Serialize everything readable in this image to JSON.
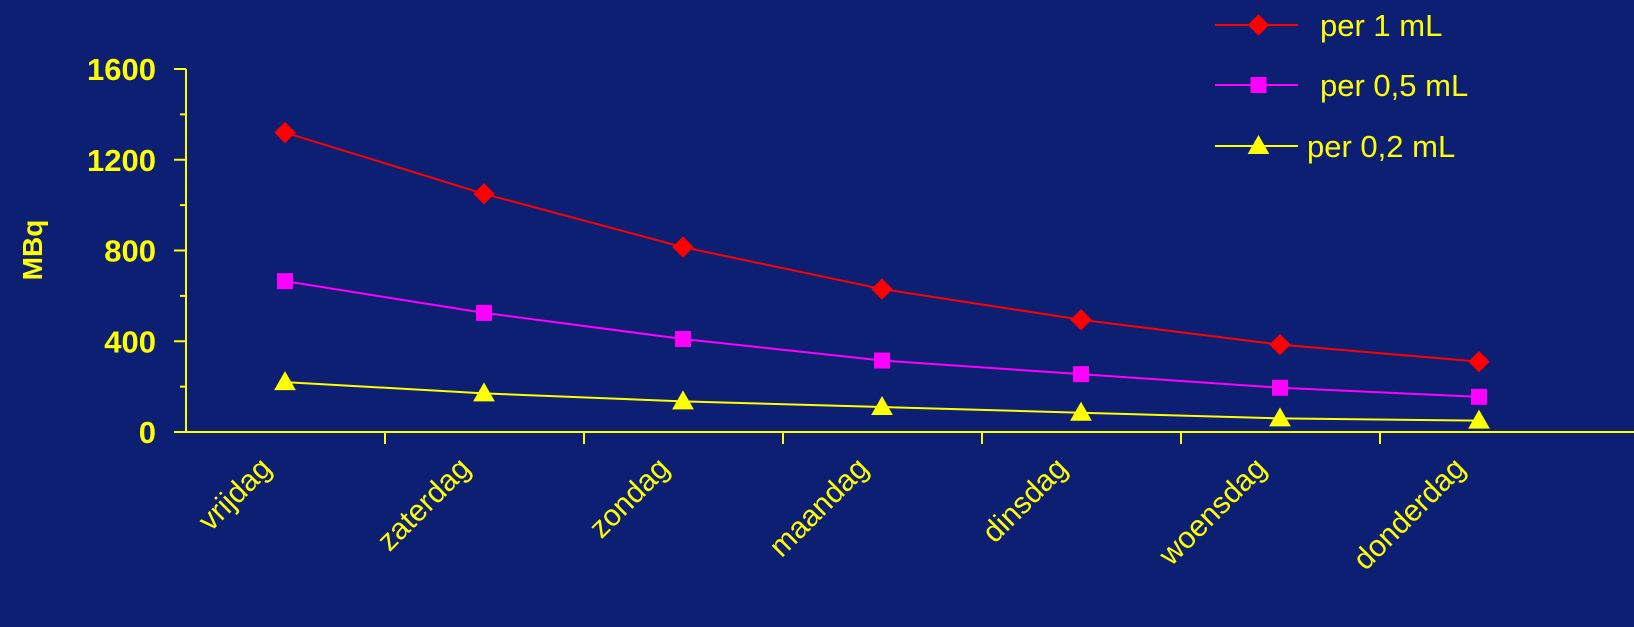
{
  "colors": {
    "background": "#0d1f73",
    "axis": "#ffff00",
    "text": "#ffff00"
  },
  "chart_data": {
    "type": "line",
    "categories": [
      "vrijdag",
      "zaterdag",
      "zondag",
      "maandag",
      "dinsdag",
      "woensdag",
      "donderdag"
    ],
    "ylabel": "MBq",
    "xlabel": "",
    "ylim": [
      0,
      1600
    ],
    "yticks": [
      "0",
      "400",
      "800",
      "1200",
      "1600"
    ],
    "legend_position": "top-right",
    "grid": false,
    "series": [
      {
        "name": "per 1 mL",
        "color": "#ff0000",
        "marker": "diamond",
        "values": [
          1320,
          1050,
          815,
          630,
          495,
          385,
          310
        ]
      },
      {
        "name": "per 0,5 mL",
        "color": "#ff00ff",
        "marker": "square",
        "values": [
          665,
          525,
          410,
          315,
          255,
          195,
          155
        ]
      },
      {
        "name": "per 0,2 mL",
        "color": "#ffff00",
        "marker": "triangle",
        "values": [
          220,
          170,
          135,
          110,
          85,
          60,
          50
        ]
      }
    ]
  }
}
